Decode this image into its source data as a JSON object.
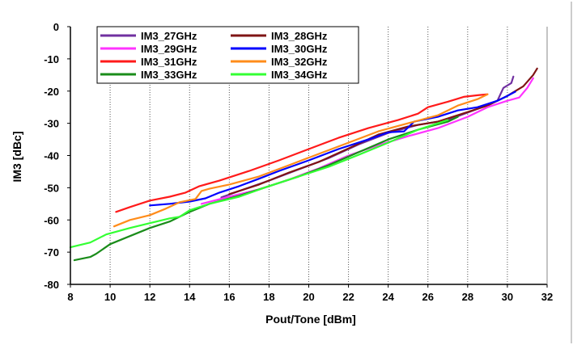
{
  "chart_data": {
    "type": "line",
    "title": "",
    "xlabel": "Pout/Tone [dBm]",
    "ylabel": "IM3 [dBc]",
    "xlim": [
      8,
      32
    ],
    "ylim": [
      -80,
      0
    ],
    "xticks": [
      8,
      10,
      12,
      14,
      16,
      18,
      20,
      22,
      24,
      26,
      28,
      30,
      32
    ],
    "yticks": [
      0,
      -10,
      -20,
      -30,
      -40,
      -50,
      -60,
      -70,
      -80
    ],
    "grid": "vertical-dotted",
    "legend_position": "top-left",
    "series": [
      {
        "name": "IM3_27GHz",
        "color": "#7030a0",
        "points": [
          [
            15.6,
            -53
          ],
          [
            16.5,
            -51
          ],
          [
            18,
            -47.8
          ],
          [
            19.5,
            -44.3
          ],
          [
            21,
            -40.8
          ],
          [
            22.5,
            -36.6
          ],
          [
            24,
            -33
          ],
          [
            25.5,
            -30.5
          ],
          [
            27,
            -29
          ],
          [
            28.5,
            -25.5
          ],
          [
            29.5,
            -23
          ],
          [
            29.8,
            -19
          ],
          [
            30.2,
            -17.5
          ],
          [
            30.3,
            -15.5
          ]
        ]
      },
      {
        "name": "IM3_28GHz",
        "color": "#7f1414",
        "points": [
          [
            16,
            -52
          ],
          [
            17.5,
            -49
          ],
          [
            19,
            -45.3
          ],
          [
            20.5,
            -42
          ],
          [
            22,
            -37.8
          ],
          [
            23.5,
            -33.5
          ],
          [
            25,
            -31
          ],
          [
            26.5,
            -29.5
          ],
          [
            28,
            -26.5
          ],
          [
            29,
            -24.5
          ],
          [
            30,
            -21.5
          ],
          [
            30.8,
            -18.5
          ],
          [
            31.3,
            -15
          ],
          [
            31.5,
            -13
          ]
        ]
      },
      {
        "name": "IM3_29GHz",
        "color": "#ff33ff",
        "points": [
          [
            14.6,
            -55
          ],
          [
            16,
            -52.8
          ],
          [
            17.5,
            -50.5
          ],
          [
            19,
            -47.5
          ],
          [
            20.5,
            -44
          ],
          [
            22,
            -40
          ],
          [
            23.5,
            -36.8
          ],
          [
            25,
            -34
          ],
          [
            26.5,
            -31.5
          ],
          [
            28,
            -28
          ],
          [
            29,
            -25
          ],
          [
            30,
            -23
          ],
          [
            30.6,
            -22
          ],
          [
            31,
            -19
          ],
          [
            31.3,
            -16
          ]
        ]
      },
      {
        "name": "IM3_30GHz",
        "color": "#0000ff",
        "points": [
          [
            12,
            -55.5
          ],
          [
            13,
            -55
          ],
          [
            14,
            -54.3
          ],
          [
            14.8,
            -53.3
          ],
          [
            15.5,
            -51.5
          ],
          [
            16.5,
            -49.5
          ],
          [
            17.5,
            -47.2
          ],
          [
            18.5,
            -44.8
          ],
          [
            20,
            -41.5
          ],
          [
            21.5,
            -38
          ],
          [
            23,
            -35
          ],
          [
            24,
            -32.8
          ],
          [
            24.8,
            -32.5
          ],
          [
            25.3,
            -29.5
          ],
          [
            26.5,
            -28
          ],
          [
            27.5,
            -26
          ],
          [
            28.5,
            -25
          ],
          [
            29.5,
            -23
          ],
          [
            30,
            -21.5
          ],
          [
            30.4,
            -20.2
          ]
        ]
      },
      {
        "name": "IM3_31GHz",
        "color": "#ff1a1a",
        "points": [
          [
            10.3,
            -57.5
          ],
          [
            11,
            -56
          ],
          [
            12,
            -54
          ],
          [
            13,
            -52.8
          ],
          [
            13.8,
            -51.5
          ],
          [
            14.5,
            -49.5
          ],
          [
            15.5,
            -47.8
          ],
          [
            17,
            -44.8
          ],
          [
            18.5,
            -41.5
          ],
          [
            20,
            -38
          ],
          [
            21.5,
            -34.5
          ],
          [
            23,
            -31.5
          ],
          [
            24.5,
            -29
          ],
          [
            25.5,
            -27
          ],
          [
            26,
            -25
          ],
          [
            27,
            -23.3
          ],
          [
            27.8,
            -21.8
          ],
          [
            28.5,
            -21.3
          ],
          [
            29,
            -21
          ]
        ]
      },
      {
        "name": "IM3_32GHz",
        "color": "#ff8c1a",
        "points": [
          [
            10.2,
            -62
          ],
          [
            11,
            -60
          ],
          [
            12,
            -58.5
          ],
          [
            12.8,
            -56.5
          ],
          [
            13.5,
            -54.5
          ],
          [
            14.3,
            -53.5
          ],
          [
            14.6,
            -51
          ],
          [
            15,
            -50.3
          ],
          [
            16,
            -49
          ],
          [
            17.5,
            -46.5
          ],
          [
            19,
            -43
          ],
          [
            20.5,
            -39.5
          ],
          [
            22,
            -36
          ],
          [
            23.5,
            -32.5
          ],
          [
            25,
            -30
          ],
          [
            26.5,
            -27.5
          ],
          [
            27.5,
            -24.5
          ],
          [
            28.5,
            -22.5
          ],
          [
            29,
            -21
          ]
        ]
      },
      {
        "name": "IM3_33GHz",
        "color": "#1a8c1a",
        "points": [
          [
            8.2,
            -72.5
          ],
          [
            9,
            -71.5
          ],
          [
            9.3,
            -70.5
          ],
          [
            10,
            -67.5
          ],
          [
            11,
            -65
          ],
          [
            12,
            -62.5
          ],
          [
            13,
            -60.5
          ],
          [
            14,
            -57.5
          ],
          [
            15,
            -55
          ],
          [
            16.5,
            -52.5
          ],
          [
            18,
            -49.5
          ],
          [
            19.5,
            -46.5
          ],
          [
            21,
            -43
          ],
          [
            22.5,
            -39
          ],
          [
            24,
            -35
          ],
          [
            25.5,
            -32
          ],
          [
            27,
            -29.5
          ],
          [
            27.5,
            -28
          ]
        ]
      },
      {
        "name": "IM3_34GHz",
        "color": "#33ff33",
        "points": [
          [
            8,
            -68.5
          ],
          [
            9,
            -67
          ],
          [
            9.8,
            -64.5
          ],
          [
            11,
            -62.5
          ],
          [
            12,
            -61
          ],
          [
            13,
            -59.5
          ],
          [
            13.5,
            -59
          ],
          [
            14,
            -57
          ],
          [
            15,
            -55
          ],
          [
            16.5,
            -52.8
          ],
          [
            18,
            -49.5
          ],
          [
            19.5,
            -46.5
          ],
          [
            21,
            -43.5
          ],
          [
            22.5,
            -39.8
          ],
          [
            24,
            -36
          ],
          [
            25.5,
            -32
          ],
          [
            27,
            -29
          ]
        ]
      }
    ]
  }
}
